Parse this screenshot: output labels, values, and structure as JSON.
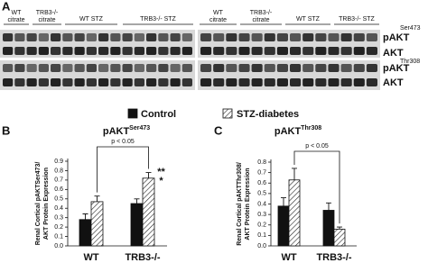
{
  "figure": {
    "panel_label": "A",
    "left_groups": [
      [
        "WT",
        "citrate"
      ],
      [
        "TRB3-/-",
        "citrate"
      ],
      [
        "WT STZ"
      ],
      [
        "TRB3-/- STZ"
      ]
    ],
    "right_groups": [
      [
        "WT",
        "citrate"
      ],
      [
        "TRB3-/-",
        "citrate"
      ],
      [
        "WT STZ"
      ],
      [
        "TRB3-/- STZ"
      ]
    ],
    "row_labels": [
      "Ser473",
      "pAKT",
      "AKT",
      "Thr308",
      "pAKT",
      "AKT"
    ]
  },
  "chart_data": [
    {
      "type": "bar",
      "panel_label": "B",
      "title": "pAKT",
      "title_sup": "Ser473",
      "ylabel": [
        "Renal Cortical pAKTSer473/",
        "AKT Protein Expression"
      ],
      "categories": [
        "WT",
        "TRB3-/-"
      ],
      "series": [
        {
          "name": "Control",
          "color": "#111111",
          "values": [
            0.28,
            0.45
          ],
          "errors": [
            0.06,
            0.05
          ]
        },
        {
          "name": "STZ-diabetes",
          "color": "hatch",
          "values": [
            0.47,
            0.72
          ],
          "errors": [
            0.06,
            0.06
          ]
        }
      ],
      "ylim": [
        0,
        0.9
      ],
      "yticks": [
        {
          "value": 0,
          "label": "0.0"
        },
        0.1,
        0.2,
        0.3,
        0.4,
        0.5,
        0.6,
        0.7,
        0.8,
        0.9
      ],
      "annotations": [
        "p < 0.05",
        "**",
        "*"
      ]
    },
    {
      "type": "bar",
      "panel_label": "C",
      "title": "pAKT",
      "title_sup": "Thr308",
      "ylabel": [
        "Renal Cortical pAKTThr308/",
        "AKT Protein Expression"
      ],
      "categories": [
        "WT",
        "TRB3-/-"
      ],
      "series": [
        {
          "name": "Control",
          "color": "#111111",
          "values": [
            0.38,
            0.34
          ],
          "errors": [
            0.08,
            0.07
          ]
        },
        {
          "name": "STZ-diabetes",
          "color": "hatch",
          "values": [
            0.63,
            0.16
          ],
          "errors": [
            0.11,
            0.02
          ]
        }
      ],
      "ylim": [
        0,
        0.8
      ],
      "yticks": [
        {
          "value": 0,
          "label": "0.0"
        },
        0.1,
        0.2,
        0.3,
        0.4,
        0.5,
        0.6,
        0.7,
        0.8
      ],
      "annotations": [
        "p < 0.05"
      ]
    }
  ]
}
